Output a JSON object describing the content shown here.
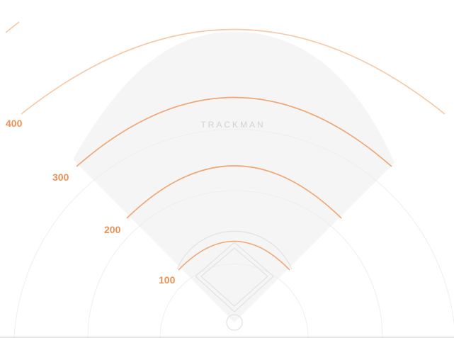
{
  "logo_text": "TRACKMAN",
  "distance_labels": [
    "100",
    "200",
    "300",
    "400"
  ],
  "colors": {
    "arc": "#f0a572",
    "arc_light": "#f6c8a6",
    "label": "#ea9256",
    "fair_territory": "#f5f5f5",
    "guide_circle": "#eeeeee",
    "infield": "#e2e2e2",
    "logo": "#d2d2d2",
    "baseline": "#c8c8c8"
  }
}
